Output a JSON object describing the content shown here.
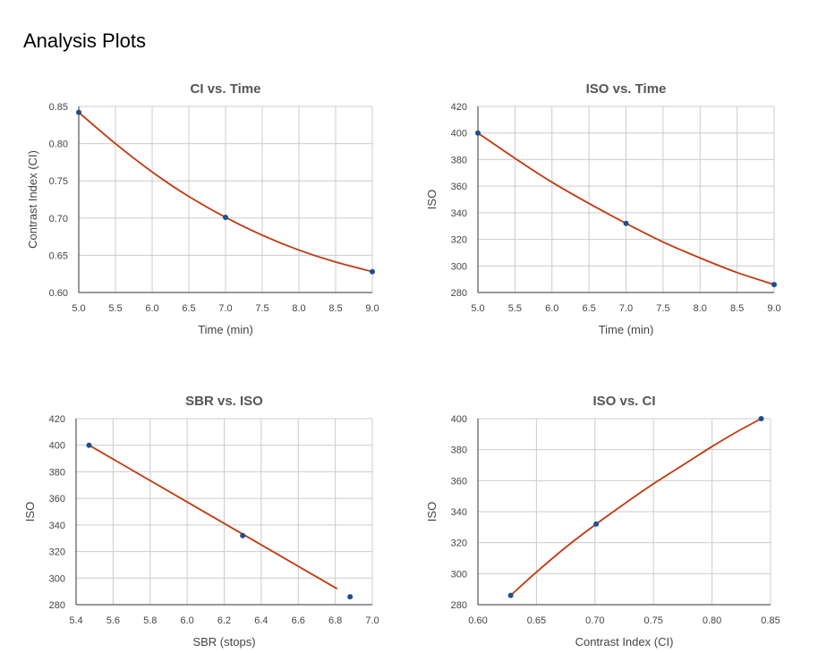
{
  "page": {
    "title": "Analysis Plots"
  },
  "style": {
    "curve_color": "#c1380f",
    "point_color": "#1f4e8c",
    "grid_color": "#cccccc"
  },
  "chart_data": [
    {
      "type": "scatter",
      "title": "CI vs. Time",
      "xlabel": "Time (min)",
      "ylabel": "Contrast Index (CI)",
      "xlim": [
        5.0,
        9.0
      ],
      "ylim": [
        0.6,
        0.85
      ],
      "xticks": [
        "5.0",
        "5.5",
        "6.0",
        "6.5",
        "7.0",
        "7.5",
        "8.0",
        "8.5",
        "9.0"
      ],
      "yticks": [
        "0.60",
        "0.65",
        "0.70",
        "0.75",
        "0.80",
        "0.85"
      ],
      "grid": true,
      "points": {
        "x": [
          5.0,
          7.0,
          9.0
        ],
        "y": [
          0.842,
          0.701,
          0.628
        ]
      },
      "fit": {
        "x": [
          5.0,
          5.5,
          6.0,
          6.5,
          7.0,
          7.5,
          8.0,
          8.5,
          9.0
        ],
        "y": [
          0.842,
          0.8,
          0.762,
          0.729,
          0.701,
          0.677,
          0.657,
          0.641,
          0.628
        ]
      }
    },
    {
      "type": "scatter",
      "title": "ISO vs. Time",
      "xlabel": "Time (min)",
      "ylabel": "ISO",
      "xlim": [
        5.0,
        9.0
      ],
      "ylim": [
        280,
        420
      ],
      "xticks": [
        "5.0",
        "5.5",
        "6.0",
        "6.5",
        "7.0",
        "7.5",
        "8.0",
        "8.5",
        "9.0"
      ],
      "yticks": [
        "280",
        "300",
        "320",
        "340",
        "360",
        "380",
        "400",
        "420"
      ],
      "grid": true,
      "points": {
        "x": [
          5.0,
          7.0,
          9.0
        ],
        "y": [
          400,
          332,
          286
        ]
      },
      "fit": {
        "x": [
          5.0,
          5.5,
          6.0,
          6.5,
          7.0,
          7.5,
          8.0,
          8.5,
          9.0
        ],
        "y": [
          400,
          381,
          363,
          347,
          332,
          318,
          306,
          295,
          286
        ]
      }
    },
    {
      "type": "scatter",
      "title": "SBR vs. ISO",
      "xlabel": "SBR (stops)",
      "ylabel": "ISO",
      "xlim": [
        5.4,
        7.0
      ],
      "ylim": [
        280,
        420
      ],
      "xticks": [
        "5.4",
        "5.6",
        "5.8",
        "6.0",
        "6.2",
        "6.4",
        "6.6",
        "6.8",
        "7.0"
      ],
      "yticks": [
        "280",
        "300",
        "320",
        "340",
        "360",
        "380",
        "400",
        "420"
      ],
      "grid": true,
      "points": {
        "x": [
          5.47,
          6.3,
          6.88
        ],
        "y": [
          400,
          332,
          286
        ]
      },
      "fit": {
        "x": [
          5.47,
          6.81
        ],
        "y": [
          400,
          292
        ]
      }
    },
    {
      "type": "scatter",
      "title": "ISO vs. CI",
      "xlabel": "Contrast Index (CI)",
      "ylabel": "ISO",
      "xlim": [
        0.6,
        0.85
      ],
      "ylim": [
        280,
        400
      ],
      "xticks": [
        "0.60",
        "0.65",
        "0.70",
        "0.75",
        "0.80",
        "0.85"
      ],
      "yticks": [
        "280",
        "300",
        "320",
        "340",
        "360",
        "380",
        "400"
      ],
      "grid": true,
      "points": {
        "x": [
          0.628,
          0.701,
          0.842
        ],
        "y": [
          286,
          332,
          400
        ]
      },
      "fit": {
        "x": [
          0.628,
          0.65,
          0.675,
          0.701,
          0.725,
          0.75,
          0.775,
          0.8,
          0.82,
          0.842
        ],
        "y": [
          286,
          301,
          317,
          332,
          345,
          358,
          370,
          382,
          391,
          400
        ]
      }
    }
  ]
}
